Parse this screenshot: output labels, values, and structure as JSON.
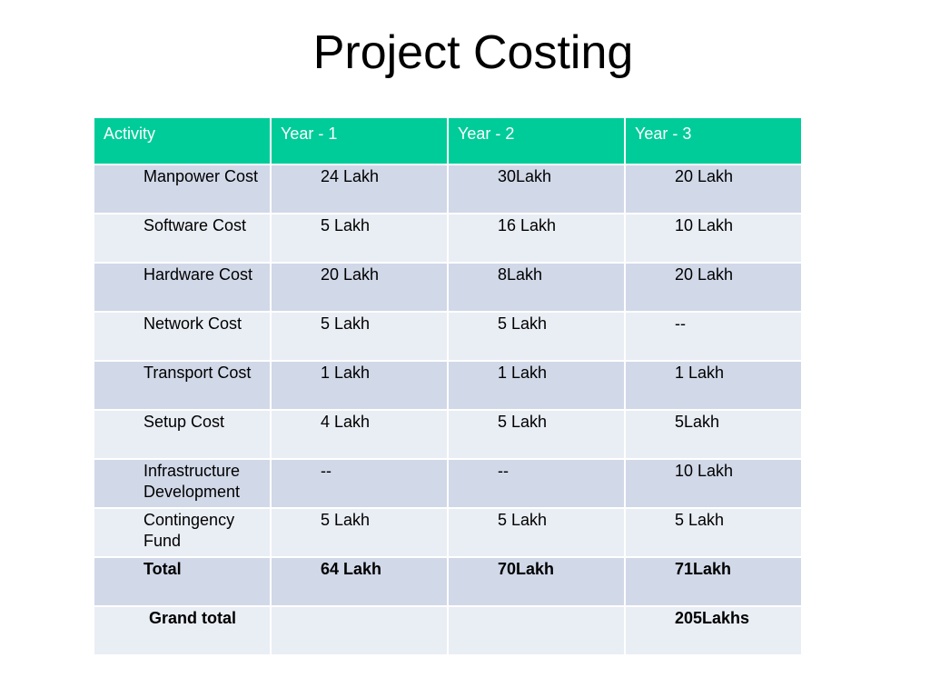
{
  "title": "Project Costing",
  "table": {
    "headers": [
      "Activity",
      "Year - 1",
      "Year - 2",
      "Year - 3"
    ],
    "rows": [
      [
        "Manpower Cost",
        "24 Lakh",
        "30Lakh",
        "20 Lakh"
      ],
      [
        "Software Cost",
        "5 Lakh",
        "16 Lakh",
        "10 Lakh"
      ],
      [
        "Hardware Cost",
        "20 Lakh",
        "8Lakh",
        "20 Lakh"
      ],
      [
        "Network Cost",
        "5 Lakh",
        "5 Lakh",
        "--"
      ],
      [
        "Transport Cost",
        "1 Lakh",
        "1 Lakh",
        "1 Lakh"
      ],
      [
        "Setup Cost",
        "4 Lakh",
        "5 Lakh",
        "5Lakh"
      ],
      [
        "Infrastructure Development",
        "--",
        "--",
        "10 Lakh"
      ],
      [
        "Contingency Fund",
        "5 Lakh",
        "5 Lakh",
        "5 Lakh"
      ],
      [
        "Total",
        "64 Lakh",
        "70Lakh",
        "71Lakh"
      ],
      [
        "Grand total",
        "",
        "",
        "205Lakhs"
      ]
    ]
  },
  "colors": {
    "header_bg": "#00cc99",
    "row_dark": "#d1d8e8",
    "row_light": "#e9edf4"
  }
}
